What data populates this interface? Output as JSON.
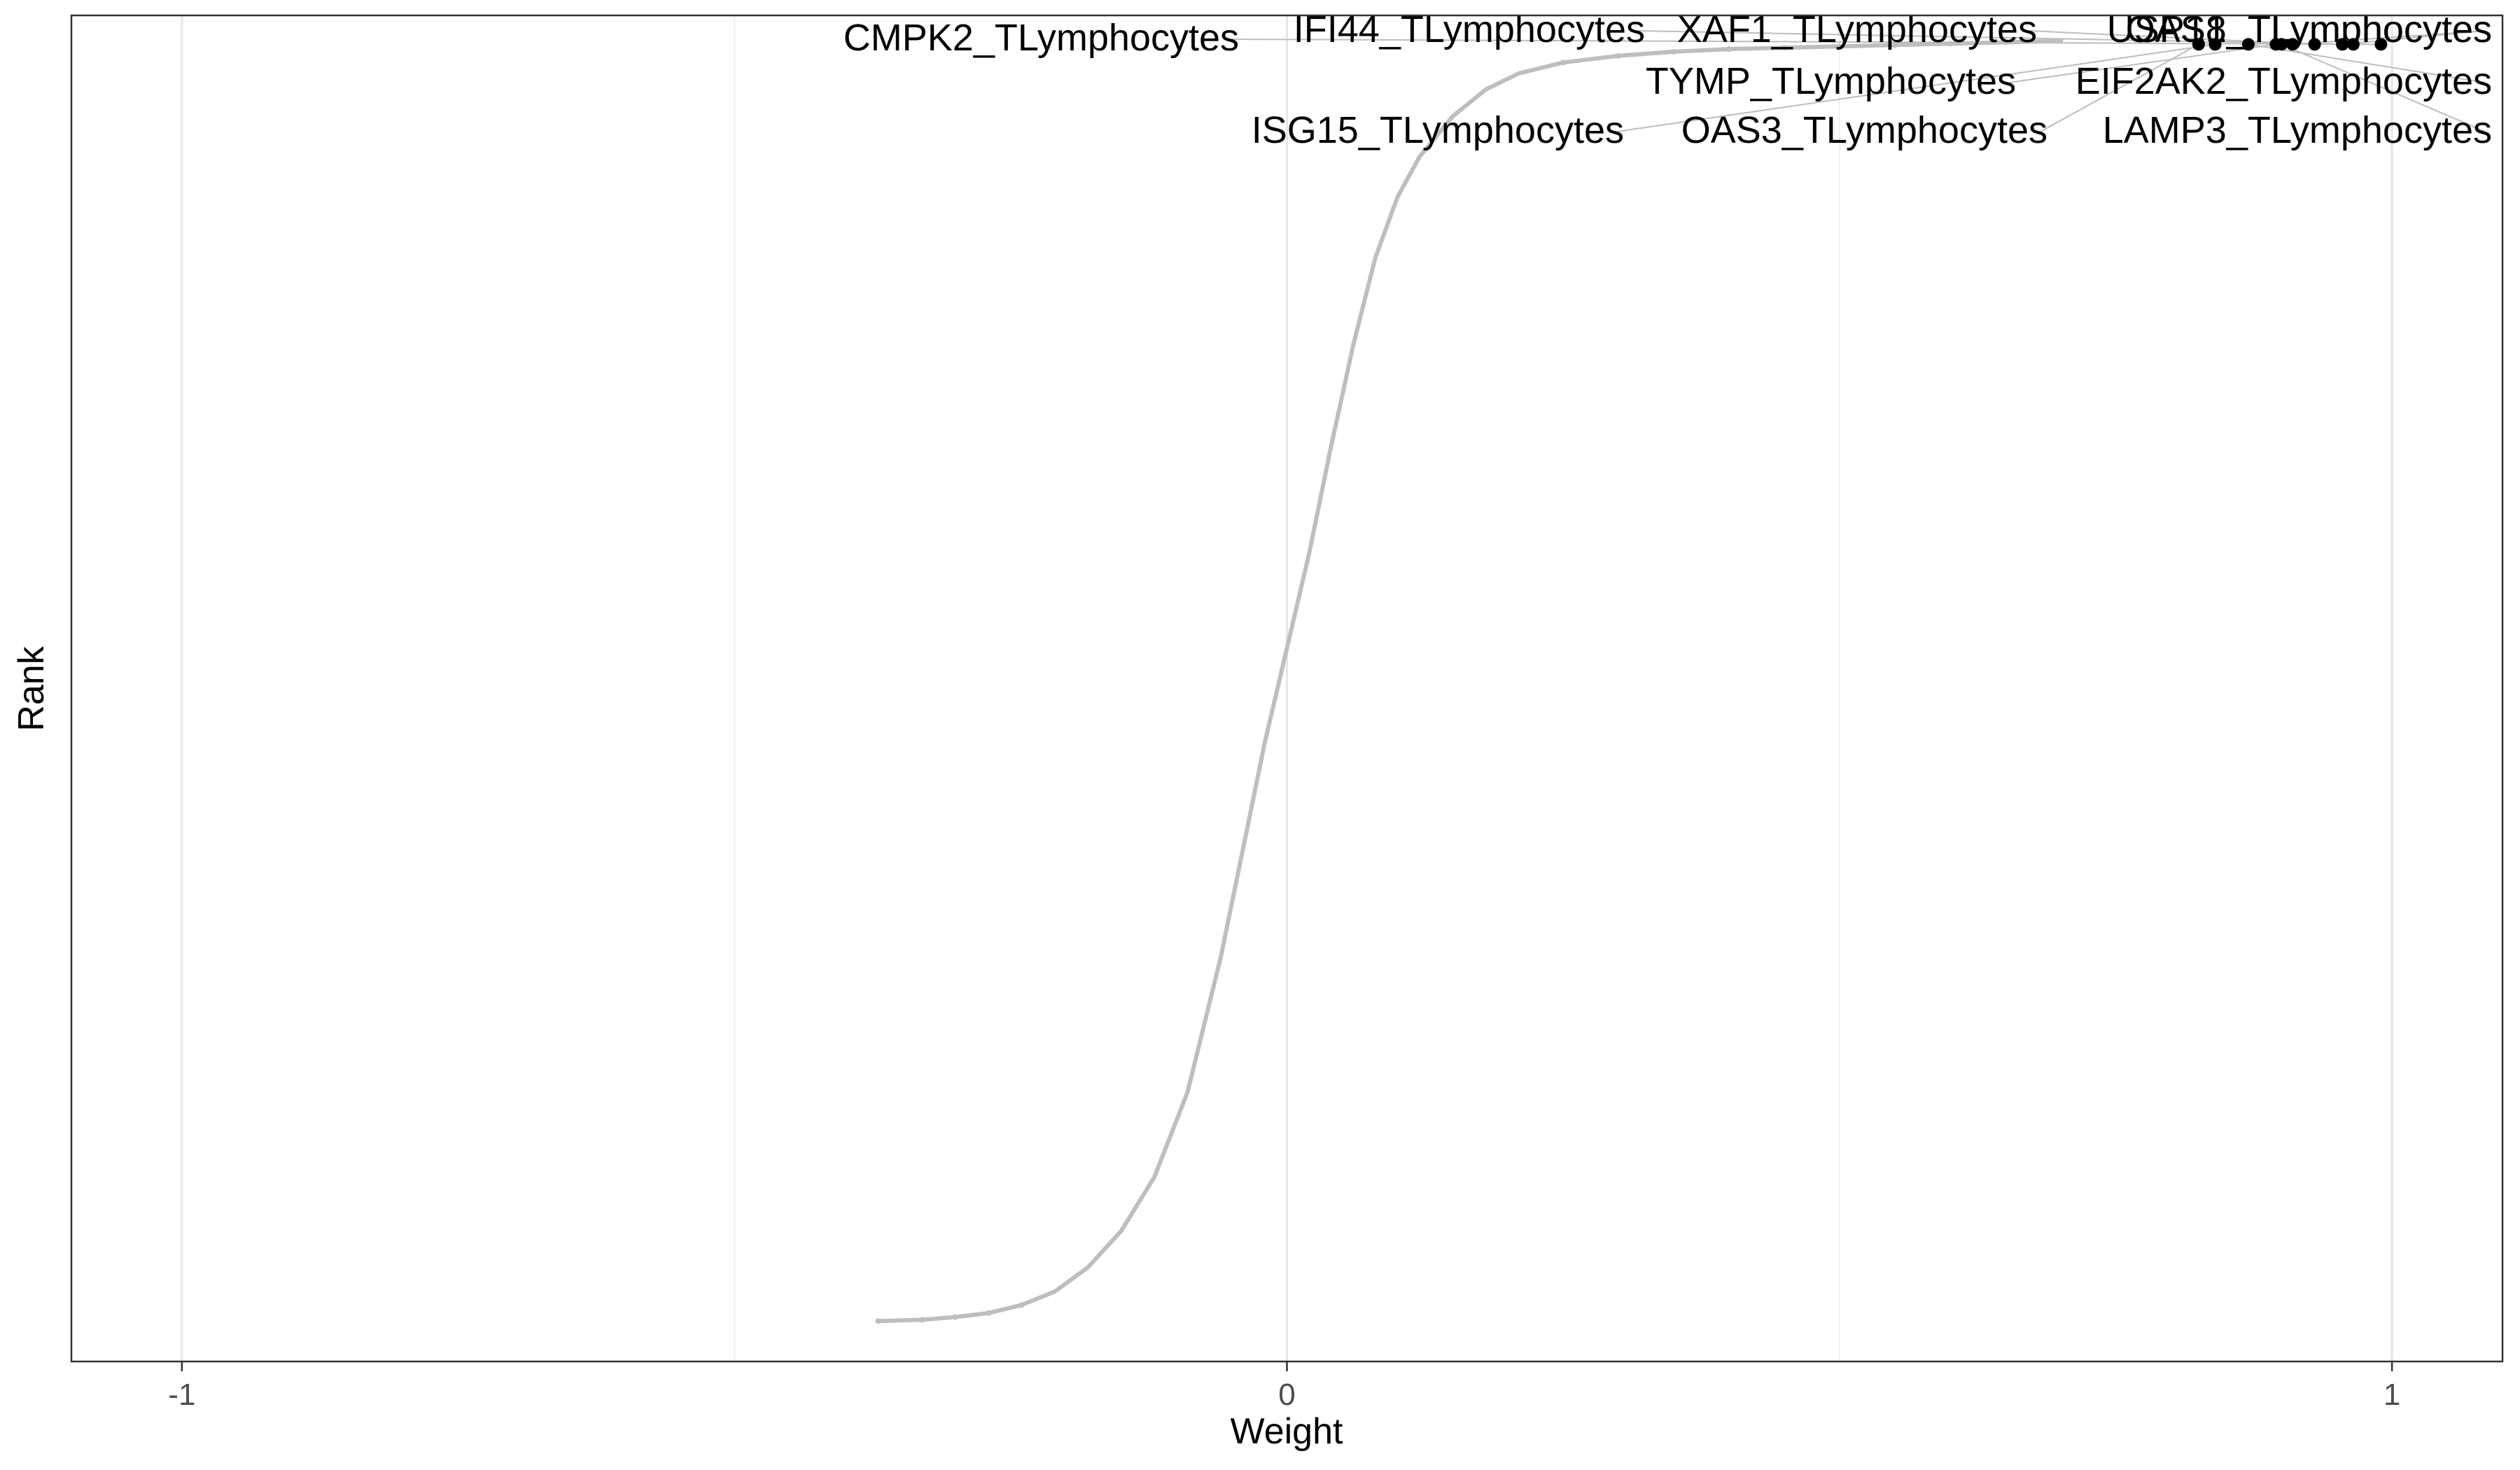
{
  "chart_data": {
    "type": "scatter",
    "title": "",
    "xlabel": "Weight",
    "ylabel": "Rank",
    "xlim": [
      -1.1,
      1.1
    ],
    "ylim": [
      0,
      1
    ],
    "x_ticks": [
      {
        "value": -1,
        "label": "-1"
      },
      {
        "value": 0,
        "label": "0"
      },
      {
        "value": 1,
        "label": "1"
      }
    ],
    "minor_gridlines_x": [
      -0.5,
      0.5
    ],
    "y_ticks_shown": false,
    "grid": true,
    "legend": "none",
    "curve_color": "#bebebe",
    "highlight_color": "#000000",
    "curve": {
      "description_points": [
        [
          -0.37,
          0.03
        ],
        [
          -0.33,
          0.031
        ],
        [
          -0.3,
          0.033
        ],
        [
          -0.27,
          0.036
        ],
        [
          -0.24,
          0.042
        ],
        [
          -0.21,
          0.052
        ],
        [
          -0.18,
          0.07
        ],
        [
          -0.15,
          0.097
        ],
        [
          -0.12,
          0.137
        ],
        [
          -0.09,
          0.2
        ],
        [
          -0.06,
          0.3
        ],
        [
          -0.04,
          0.38
        ],
        [
          -0.02,
          0.46
        ],
        [
          0.0,
          0.53
        ],
        [
          0.02,
          0.6
        ],
        [
          0.04,
          0.68
        ],
        [
          0.06,
          0.755
        ],
        [
          0.08,
          0.82
        ],
        [
          0.1,
          0.865
        ],
        [
          0.12,
          0.895
        ],
        [
          0.15,
          0.925
        ],
        [
          0.18,
          0.945
        ],
        [
          0.21,
          0.957
        ],
        [
          0.25,
          0.965
        ],
        [
          0.3,
          0.97
        ],
        [
          0.35,
          0.973
        ],
        [
          0.4,
          0.975
        ],
        [
          0.45,
          0.976
        ],
        [
          0.5,
          0.977
        ],
        [
          0.55,
          0.978
        ],
        [
          0.6,
          0.979
        ],
        [
          0.65,
          0.98
        ],
        [
          0.7,
          0.981
        ]
      ]
    },
    "highlighted": [
      {
        "name": "CMPK2_TLymphocytes",
        "weight": 0.99,
        "rank": 0.9785
      },
      {
        "name": "IFI44_TLymphocytes",
        "weight": 0.965,
        "rank": 0.9785
      },
      {
        "name": "XAF1_TLymphocytes",
        "weight": 0.93,
        "rank": 0.9785
      },
      {
        "name": "USP18_TLymphocytes",
        "weight": 0.955,
        "rank": 0.9785
      },
      {
        "name": "OAS1_TLymphocytes",
        "weight": 0.91,
        "rank": 0.9785
      },
      {
        "name": "TYMP_TLymphocytes",
        "weight": 0.895,
        "rank": 0.9785
      },
      {
        "name": "EIF2AK2_TLymphocytes",
        "weight": 0.87,
        "rank": 0.9785
      },
      {
        "name": "ISG15_TLymphocytes",
        "weight": 0.84,
        "rank": 0.9785
      },
      {
        "name": "OAS3_TLymphocytes",
        "weight": 0.825,
        "rank": 0.9785
      },
      {
        "name": "LAMP3_TLymphocytes",
        "weight": 0.9,
        "rank": 0.9785
      }
    ]
  }
}
